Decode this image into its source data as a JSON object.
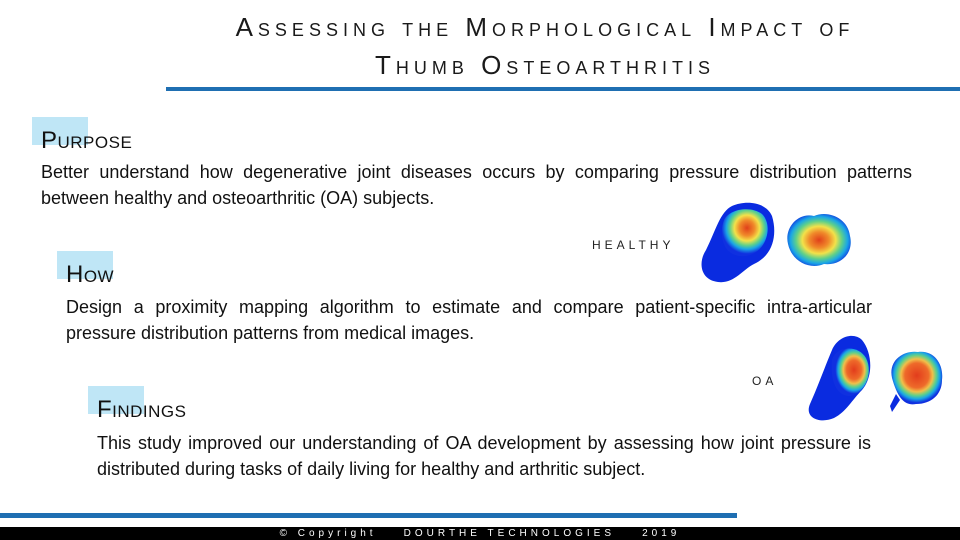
{
  "title": {
    "line1": "Assessing the Morphological Impact of",
    "line2": "Thumb Osteoarthritis"
  },
  "sections": [
    {
      "heading": "Purpose",
      "text": "Better understand how degenerative joint diseases occurs by comparing pressure distribution patterns between healthy and osteoarthritic (OA) subjects."
    },
    {
      "heading": "How",
      "text": "Design a proximity mapping algorithm to estimate and compare patient-specific intra-articular pressure distribution patterns from medical images."
    },
    {
      "heading": "Findings",
      "text": "This study improved our understanding of OA development by assessing how joint pressure is distributed during tasks of daily living for healthy and arthritic subject."
    }
  ],
  "images": {
    "healthy_label": "HEALTHY",
    "oa_label": "OA"
  },
  "footer": {
    "text": "© Copyright    DOURTHE TECHNOLOGIES    2019"
  },
  "colors": {
    "accent_rule": "#1f6fb2",
    "heading_highlight": "#bfe6f6",
    "footer_bg": "#000000"
  }
}
